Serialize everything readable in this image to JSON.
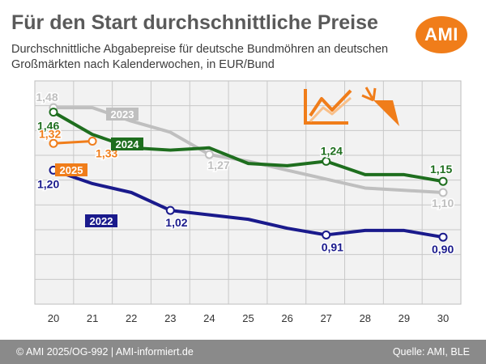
{
  "header": {
    "title": "Für den Start durchschnittliche Preise",
    "subtitle": "Durchschnittliche Abgabepreise für deutsche Bundmöhren an deutschen Großmärkten nach Kalenderwochen, in EUR/Bund",
    "logo_text": "AMI",
    "logo_color": "#f07d1a",
    "decoration_icon": "chart-and-carrot-icon"
  },
  "footer": {
    "left": "© AMI 2025/OG-992 | AMI-informiert.de",
    "right": "Quelle: AMI, BLE"
  },
  "chart_data": {
    "type": "line",
    "title": "Für den Start durchschnittliche Preise",
    "x": [
      20,
      21,
      22,
      23,
      24,
      25,
      26,
      27,
      28,
      29,
      30
    ],
    "ylim": [
      0.6,
      1.6
    ],
    "grid": true,
    "series": [
      {
        "name": "2023",
        "color": "#bfbfbf",
        "values": [
          1.48,
          1.48,
          1.42,
          1.37,
          1.27,
          1.24,
          1.2,
          1.16,
          1.12,
          1.11,
          1.1
        ],
        "labels": [
          {
            "index": 0,
            "text": "1,48"
          },
          {
            "index": 4,
            "text": "1,27"
          },
          {
            "index": 10,
            "text": "1,10"
          }
        ]
      },
      {
        "name": "2024",
        "color": "#1e6e1e",
        "values": [
          1.46,
          1.36,
          1.3,
          1.29,
          1.3,
          1.23,
          1.22,
          1.24,
          1.18,
          1.18,
          1.15
        ],
        "labels": [
          {
            "index": 0,
            "text": "1,46"
          },
          {
            "index": 7,
            "text": "1,24"
          },
          {
            "index": 10,
            "text": "1,15"
          }
        ]
      },
      {
        "name": "2025",
        "color": "#f07d1a",
        "values": [
          1.32,
          1.33,
          null,
          null,
          null,
          null,
          null,
          null,
          null,
          null,
          null
        ],
        "labels": [
          {
            "index": 0,
            "text": "1,32"
          },
          {
            "index": 1,
            "text": "1,33"
          }
        ]
      },
      {
        "name": "2022",
        "color": "#1a1a8c",
        "values": [
          1.2,
          1.14,
          1.1,
          1.02,
          1.0,
          0.98,
          0.94,
          0.91,
          0.93,
          0.93,
          0.9
        ],
        "labels": [
          {
            "index": 0,
            "text": "1,20"
          },
          {
            "index": 3,
            "text": "1,02"
          },
          {
            "index": 7,
            "text": "0,91"
          },
          {
            "index": 10,
            "text": "0,90"
          }
        ]
      }
    ]
  }
}
